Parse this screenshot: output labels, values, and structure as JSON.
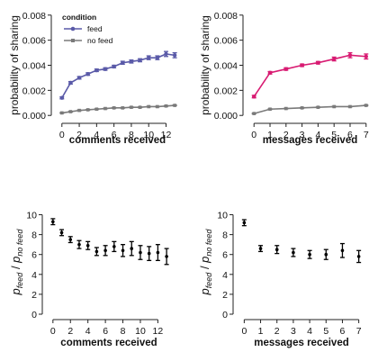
{
  "chart_data": [
    {
      "type": "line",
      "xlabel": "comments received",
      "ylabel": "probability of sharing",
      "xticks": [
        0,
        2,
        4,
        6,
        8,
        10,
        12
      ],
      "yticks": [
        "0.000",
        "0.002",
        "0.004",
        "0.006",
        "0.008"
      ],
      "xlim": [
        -0.6,
        13.4
      ],
      "ylim": [
        -0.0002,
        0.0082
      ],
      "grid": false,
      "legend": {
        "title": "condition",
        "position": "top-left",
        "entries": [
          "feed",
          "no feed"
        ]
      },
      "series": [
        {
          "name": "feed",
          "color": "#5a5aa8",
          "marker": "circle",
          "x": [
            0,
            1,
            2,
            3,
            4,
            5,
            6,
            7,
            8,
            9,
            10,
            11,
            12,
            13
          ],
          "y": [
            0.0014,
            0.0026,
            0.003,
            0.0033,
            0.0036,
            0.0037,
            0.0039,
            0.0042,
            0.0043,
            0.0044,
            0.0046,
            0.0046,
            0.0049,
            0.0048
          ],
          "err": [
            8e-05,
            0.0001,
            0.0001,
            0.0001,
            0.0001,
            0.0001,
            0.0001,
            0.00012,
            0.00012,
            0.00012,
            0.00015,
            0.00015,
            0.0002,
            0.0002
          ]
        },
        {
          "name": "no feed",
          "color": "#7a7a7a",
          "marker": "square",
          "x": [
            0,
            1,
            2,
            3,
            4,
            5,
            6,
            7,
            8,
            9,
            10,
            11,
            12,
            13
          ],
          "y": [
            0.0002,
            0.0003,
            0.0004,
            0.00045,
            0.0005,
            0.00055,
            0.0006,
            0.0006,
            0.00065,
            0.00065,
            0.0007,
            0.0007,
            0.00075,
            0.0008
          ],
          "err": [
            3e-05,
            3e-05,
            3e-05,
            3e-05,
            3e-05,
            3e-05,
            3e-05,
            3e-05,
            3e-05,
            3e-05,
            3e-05,
            3e-05,
            3e-05,
            3e-05
          ]
        }
      ]
    },
    {
      "type": "line",
      "xlabel": "messages received",
      "ylabel": "probability of sharing",
      "xticks": [
        0,
        1,
        2,
        3,
        4,
        5,
        6,
        7
      ],
      "yticks": [
        "0.000",
        "0.002",
        "0.004",
        "0.006",
        "0.008"
      ],
      "xlim": [
        -0.35,
        7.35
      ],
      "ylim": [
        -0.0002,
        0.0082
      ],
      "grid": false,
      "series": [
        {
          "name": "feed",
          "color": "#d81b72",
          "marker": "circle",
          "x": [
            0,
            1,
            2,
            3,
            4,
            5,
            6,
            7
          ],
          "y": [
            0.0015,
            0.0034,
            0.0037,
            0.004,
            0.0042,
            0.0045,
            0.0048,
            0.0047
          ],
          "err": [
            0.0001,
            0.0001,
            0.0001,
            0.0001,
            0.0001,
            0.00015,
            0.0002,
            0.0002
          ]
        },
        {
          "name": "no feed",
          "color": "#7a7a7a",
          "marker": "square",
          "x": [
            0,
            1,
            2,
            3,
            4,
            5,
            6,
            7
          ],
          "y": [
            0.00015,
            0.0005,
            0.00055,
            0.0006,
            0.00065,
            0.0007,
            0.0007,
            0.0008
          ],
          "err": [
            3e-05,
            3e-05,
            3e-05,
            3e-05,
            3e-05,
            3e-05,
            3e-05,
            3e-05
          ]
        }
      ]
    },
    {
      "type": "scatter",
      "xlabel": "comments received",
      "ylabel": {
        "base": "p",
        "sub1": "feed",
        "sep": "/",
        "sub2": "no feed"
      },
      "xticks": [
        0,
        2,
        4,
        6,
        8,
        10,
        12
      ],
      "yticks": [
        "0",
        "2",
        "4",
        "6",
        "8",
        "10"
      ],
      "xlim": [
        -0.6,
        13.4
      ],
      "ylim": [
        0,
        10.5
      ],
      "grid": false,
      "series": [
        {
          "color": "#000000",
          "x": [
            0,
            1,
            2,
            3,
            4,
            5,
            6,
            7,
            8,
            9,
            10,
            11,
            12,
            13
          ],
          "y": [
            9.3,
            8.2,
            7.5,
            7.0,
            6.9,
            6.3,
            6.4,
            6.8,
            6.4,
            6.6,
            6.2,
            6.1,
            6.2,
            5.8
          ],
          "err": [
            0.3,
            0.3,
            0.3,
            0.4,
            0.4,
            0.4,
            0.5,
            0.5,
            0.6,
            0.7,
            0.7,
            0.7,
            0.8,
            0.8
          ]
        }
      ]
    },
    {
      "type": "scatter",
      "xlabel": "messages received",
      "ylabel": {
        "base": "p",
        "sub1": "feed",
        "sep": "/",
        "sub2": "no feed"
      },
      "xticks": [
        0,
        1,
        2,
        3,
        4,
        5,
        6,
        7
      ],
      "yticks": [
        "0",
        "2",
        "4",
        "6",
        "8",
        "10"
      ],
      "xlim": [
        -0.35,
        7.35
      ],
      "ylim": [
        0,
        10.5
      ],
      "grid": false,
      "series": [
        {
          "color": "#000000",
          "x": [
            0,
            1,
            2,
            3,
            4,
            5,
            6,
            7
          ],
          "y": [
            9.2,
            6.6,
            6.5,
            6.2,
            6.0,
            6.0,
            6.4,
            5.8
          ],
          "err": [
            0.3,
            0.3,
            0.4,
            0.4,
            0.4,
            0.5,
            0.7,
            0.6
          ]
        }
      ]
    }
  ]
}
